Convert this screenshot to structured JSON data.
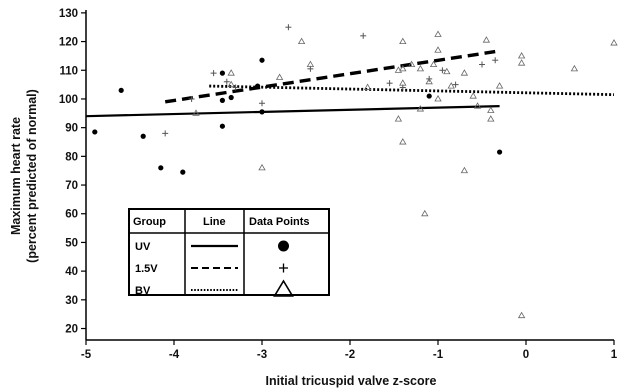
{
  "chart_data": {
    "type": "scatter",
    "xlabel": "Initial tricuspid valve z-score",
    "ylabel_lines": [
      "Maximum heart rate",
      "(percent predicted of normal)"
    ],
    "xlim": [
      -5,
      1
    ],
    "ylim": [
      16,
      131
    ],
    "x_ticks": [
      -5,
      -4,
      -3,
      -2,
      -1,
      0,
      1
    ],
    "x_tick_labels": [
      "-5",
      "-4",
      "-3",
      "-2",
      "-1",
      "0",
      "1"
    ],
    "y_ticks": [
      20,
      30,
      40,
      50,
      60,
      70,
      80,
      90,
      100,
      110,
      120,
      130
    ],
    "y_tick_labels": [
      "20",
      "30",
      "40",
      "50",
      "60",
      "70",
      "80",
      "90",
      "100",
      "110",
      "120",
      "130"
    ],
    "grid": false,
    "legend": {
      "placement": "lower-left",
      "headers": [
        "Group",
        "Line",
        "Data Points"
      ],
      "rows": [
        {
          "label": "UV",
          "line": "solid",
          "marker": "dot"
        },
        {
          "label": "1.5V",
          "line": "dashed",
          "marker": "plus"
        },
        {
          "label": "BV",
          "line": "dotted",
          "marker": "triangle"
        }
      ]
    },
    "series": [
      {
        "key": "UV",
        "marker": "dot",
        "line_style": "solid",
        "points": [
          [
            -4.9,
            88.5
          ],
          [
            -4.6,
            103
          ],
          [
            -4.35,
            87
          ],
          [
            -4.15,
            76
          ],
          [
            -3.9,
            74.5
          ],
          [
            -3.45,
            109
          ],
          [
            -3.45,
            99.5
          ],
          [
            -3.45,
            90.5
          ],
          [
            -3.35,
            100.5
          ],
          [
            -3.05,
            104.5
          ],
          [
            -3.0,
            113.5
          ],
          [
            -3.0,
            95.5
          ],
          [
            -1.1,
            101
          ],
          [
            -0.3,
            81.5
          ]
        ],
        "trend": [
          [
            -5,
            94
          ],
          [
            -0.3,
            97.5
          ]
        ]
      },
      {
        "key": "1.5V",
        "marker": "plus",
        "line_style": "dashed",
        "points": [
          [
            -4.1,
            88
          ],
          [
            -3.8,
            100
          ],
          [
            -3.55,
            109
          ],
          [
            -3.4,
            106
          ],
          [
            -3.3,
            104
          ],
          [
            -3.0,
            98.5
          ],
          [
            -2.7,
            125
          ],
          [
            -2.45,
            110.5
          ],
          [
            -1.85,
            122
          ],
          [
            -1.55,
            105.5
          ],
          [
            -1.4,
            104
          ],
          [
            -1.1,
            107
          ],
          [
            -0.95,
            110
          ],
          [
            -0.8,
            105
          ],
          [
            -0.5,
            112
          ],
          [
            -0.35,
            113.5
          ]
        ],
        "trend": [
          [
            -4.1,
            99
          ],
          [
            -0.35,
            116.5
          ]
        ]
      },
      {
        "key": "BV",
        "marker": "triangle",
        "line_style": "dotted",
        "points": [
          [
            -3.75,
            95
          ],
          [
            -3.35,
            109
          ],
          [
            -3.35,
            105
          ],
          [
            -3.0,
            76
          ],
          [
            -2.8,
            107.5
          ],
          [
            -2.55,
            120
          ],
          [
            -2.45,
            112
          ],
          [
            -1.8,
            104
          ],
          [
            -1.45,
            110
          ],
          [
            -1.45,
            93
          ],
          [
            -1.4,
            120
          ],
          [
            -1.4,
            110.5
          ],
          [
            -1.4,
            105.5
          ],
          [
            -1.4,
            85
          ],
          [
            -1.3,
            112
          ],
          [
            -1.2,
            110.5
          ],
          [
            -1.15,
            60
          ],
          [
            -1.1,
            106
          ],
          [
            -1.05,
            112
          ],
          [
            -1.0,
            122.5
          ],
          [
            -1.0,
            117
          ],
          [
            -1.0,
            100
          ],
          [
            -0.9,
            109.5
          ],
          [
            -0.85,
            104.5
          ],
          [
            -0.7,
            109
          ],
          [
            -0.7,
            75
          ],
          [
            -0.6,
            101
          ],
          [
            -0.55,
            97.5
          ],
          [
            -0.45,
            120.5
          ],
          [
            -0.4,
            96
          ],
          [
            -0.4,
            93
          ],
          [
            -0.05,
            115
          ],
          [
            -0.05,
            112.5
          ],
          [
            0.55,
            110.5
          ],
          [
            1.0,
            119.5
          ],
          [
            -0.05,
            24.5
          ],
          [
            -1.2,
            96.5
          ],
          [
            -0.3,
            104.5
          ]
        ],
        "trend": [
          [
            -3.6,
            104.5
          ],
          [
            1.0,
            101.5
          ]
        ]
      }
    ]
  }
}
